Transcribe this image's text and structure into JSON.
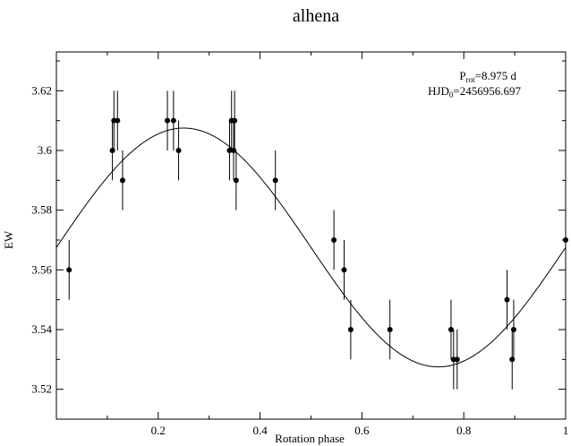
{
  "chart_data": {
    "type": "scatter",
    "title": "alhena",
    "xlabel": "Rotation phase",
    "ylabel": "EW",
    "xlim": [
      0.0,
      1.0
    ],
    "ylim": [
      3.51,
      3.633
    ],
    "x_ticks": [
      0.2,
      0.4,
      0.6,
      0.8,
      1.0
    ],
    "x_tick_labels": [
      "0.2",
      "0.4",
      "0.6",
      "0.8",
      "1"
    ],
    "y_ticks": [
      3.52,
      3.54,
      3.56,
      3.58,
      3.6,
      3.62
    ],
    "y_tick_labels": [
      "3.52",
      "3.54",
      "3.56",
      "3.58",
      "3.6",
      "3.62"
    ],
    "grid": false,
    "legend": "none",
    "annotation": {
      "period_symbol": "P",
      "period_subscript": "rot",
      "period_value": "=8.975 d",
      "epoch_symbol": "HJD",
      "epoch_subscript": "0",
      "epoch_value": "=2456956.697"
    },
    "series": [
      {
        "kind": "points_with_errorbars",
        "points": [
          {
            "x": 0.025,
            "y": 3.56,
            "err": 0.01
          },
          {
            "x": 0.11,
            "y": 3.6,
            "err": 0.01
          },
          {
            "x": 0.113,
            "y": 3.61,
            "err": 0.01
          },
          {
            "x": 0.12,
            "y": 3.61,
            "err": 0.01
          },
          {
            "x": 0.13,
            "y": 3.59,
            "err": 0.01
          },
          {
            "x": 0.218,
            "y": 3.61,
            "err": 0.01
          },
          {
            "x": 0.23,
            "y": 3.61,
            "err": 0.01
          },
          {
            "x": 0.24,
            "y": 3.6,
            "err": 0.01
          },
          {
            "x": 0.34,
            "y": 3.6,
            "err": 0.01
          },
          {
            "x": 0.344,
            "y": 3.61,
            "err": 0.01
          },
          {
            "x": 0.348,
            "y": 3.6,
            "err": 0.01
          },
          {
            "x": 0.35,
            "y": 3.61,
            "err": 0.01
          },
          {
            "x": 0.353,
            "y": 3.59,
            "err": 0.01
          },
          {
            "x": 0.43,
            "y": 3.59,
            "err": 0.01
          },
          {
            "x": 0.545,
            "y": 3.57,
            "err": 0.01
          },
          {
            "x": 0.565,
            "y": 3.56,
            "err": 0.01
          },
          {
            "x": 0.578,
            "y": 3.54,
            "err": 0.01
          },
          {
            "x": 0.655,
            "y": 3.54,
            "err": 0.01
          },
          {
            "x": 0.775,
            "y": 3.54,
            "err": 0.01
          },
          {
            "x": 0.78,
            "y": 3.53,
            "err": 0.01
          },
          {
            "x": 0.787,
            "y": 3.53,
            "err": 0.01
          },
          {
            "x": 0.885,
            "y": 3.55,
            "err": 0.01
          },
          {
            "x": 0.895,
            "y": 3.53,
            "err": 0.01
          },
          {
            "x": 0.898,
            "y": 3.54,
            "err": 0.01
          },
          {
            "x": 1.0,
            "y": 3.57,
            "err": 0.01
          }
        ]
      },
      {
        "kind": "model_curve",
        "function": "sinusoid",
        "mean": 3.5675,
        "amplitude": 0.04,
        "phase_of_max": 0.25
      }
    ]
  }
}
